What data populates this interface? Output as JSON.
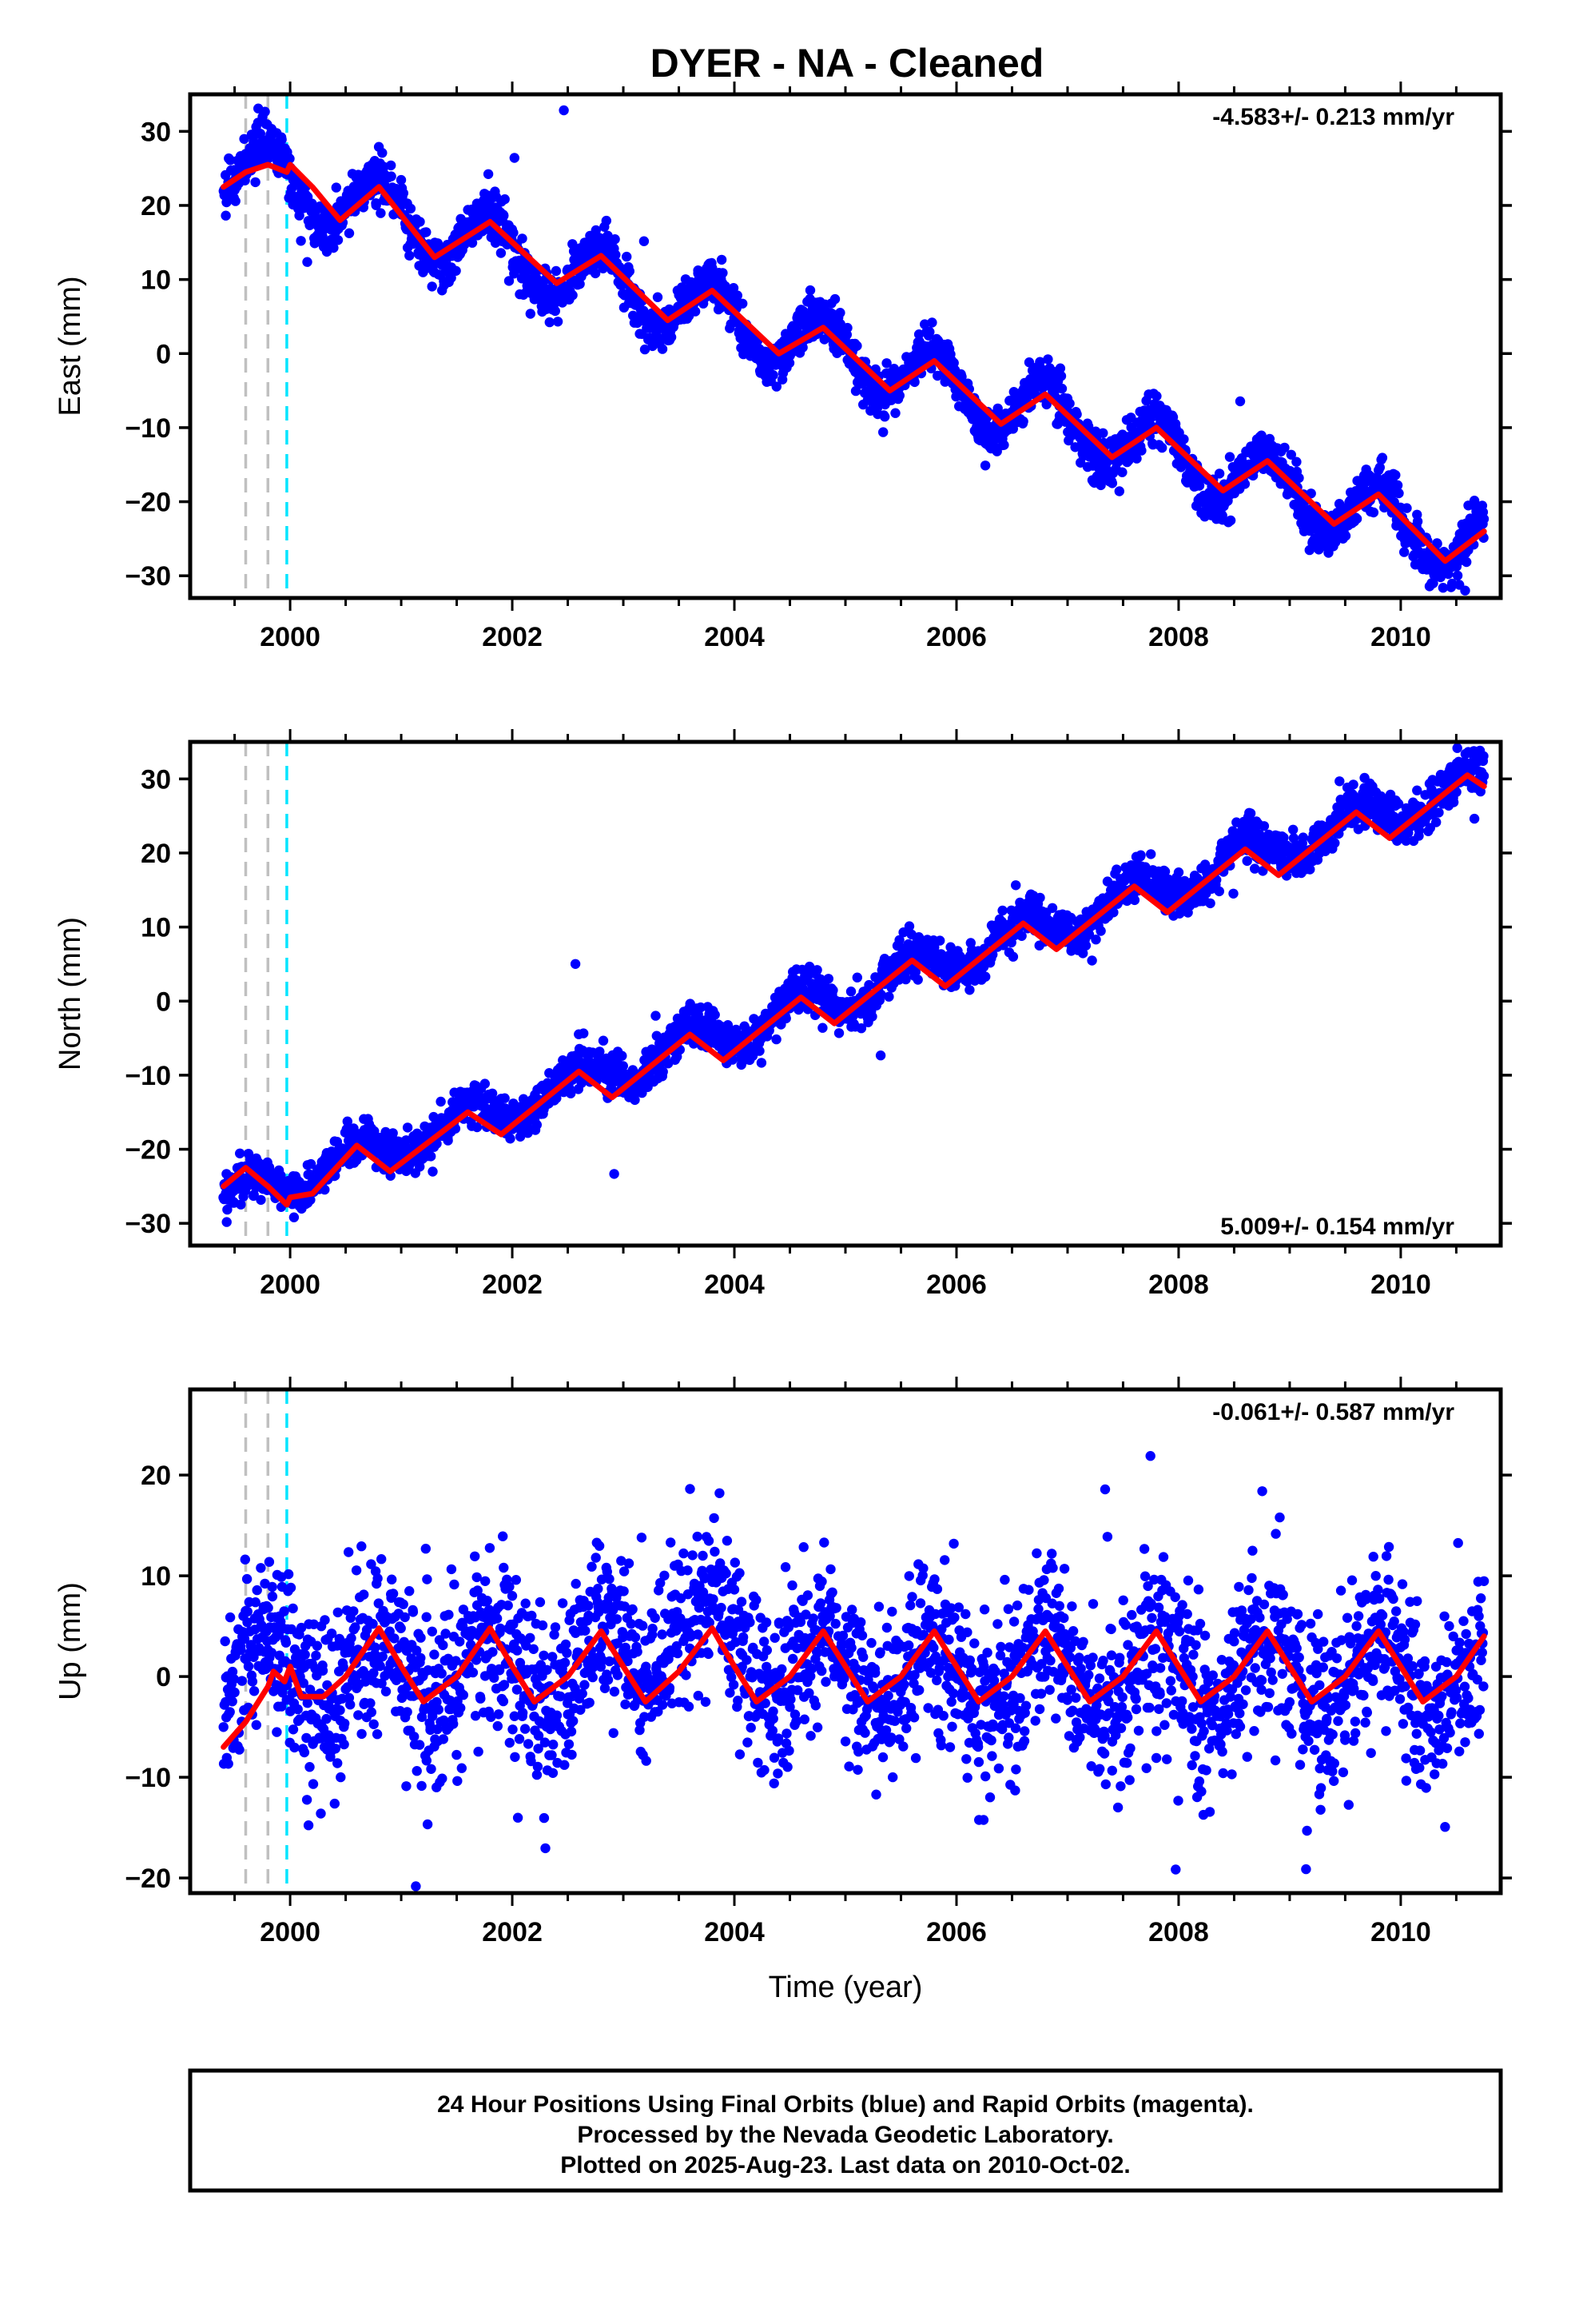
{
  "chart_data": {
    "title": "DYER  - NA - Cleaned",
    "type": "scatter",
    "x_axis": {
      "label": "Time (year)",
      "range": [
        1999.1,
        2010.9
      ],
      "tick_labels": [
        "2000",
        "2002",
        "2004",
        "2006",
        "2008",
        "2010"
      ],
      "tick_values": [
        2000,
        2002,
        2004,
        2006,
        2008,
        2010
      ]
    },
    "data_span": [
      1999.4,
      2010.75
    ],
    "event_lines": [
      {
        "x": 1999.6,
        "color": "#c0c0c0"
      },
      {
        "x": 1999.8,
        "color": "#c0c0c0"
      },
      {
        "x": 1999.97,
        "color": "#00e5ff"
      }
    ],
    "colors": {
      "data": "#0000ff",
      "model": "#ff0000",
      "frame": "#000000"
    },
    "panels": [
      {
        "component": "east",
        "ylabel": "East (mm)",
        "ylim": [
          -33,
          35
        ],
        "yticks": [
          30,
          20,
          10,
          0,
          -10,
          -20,
          -30
        ],
        "rate_text": "-4.583+/- 0.213 mm/yr",
        "rate_position": "top-right",
        "trend": {
          "start": 25.5,
          "rate": -4.583
        },
        "annual_amplitude": 4.4,
        "annual_phase_peak": 0.8,
        "scatter": 1.6,
        "model_points": [
          [
            1999.4,
            22.5
          ],
          [
            1999.6,
            24.5
          ],
          [
            1999.8,
            25.5
          ],
          [
            1999.97,
            24.5
          ],
          [
            2000.0,
            25.5
          ],
          [
            2000.2,
            22.5
          ],
          [
            2000.45,
            18.0
          ],
          [
            2000.8,
            22.5
          ],
          [
            2001.3,
            13.0
          ],
          [
            2001.8,
            17.8
          ],
          [
            2002.4,
            9.5
          ],
          [
            2002.8,
            13.2
          ],
          [
            2003.4,
            4.5
          ],
          [
            2003.8,
            8.5
          ],
          [
            2004.4,
            0.0
          ],
          [
            2004.8,
            3.5
          ],
          [
            2005.4,
            -5.0
          ],
          [
            2005.8,
            -1.0
          ],
          [
            2006.4,
            -9.5
          ],
          [
            2006.8,
            -5.5
          ],
          [
            2007.4,
            -14.0
          ],
          [
            2007.8,
            -10.0
          ],
          [
            2008.4,
            -18.5
          ],
          [
            2008.8,
            -14.5
          ],
          [
            2009.4,
            -23.0
          ],
          [
            2009.8,
            -19.0
          ],
          [
            2010.4,
            -28.0
          ],
          [
            2010.75,
            -24.0
          ]
        ]
      },
      {
        "component": "north",
        "ylabel": "North (mm)",
        "ylim": [
          -33,
          35
        ],
        "yticks": [
          30,
          20,
          10,
          0,
          -10,
          -20,
          -30
        ],
        "rate_text": "5.009+/- 0.154 mm/yr",
        "rate_position": "bottom-right",
        "trend": {
          "start": -27.0,
          "rate": 5.009
        },
        "annual_amplitude": 2.4,
        "annual_phase_peak": 0.6,
        "scatter": 1.4,
        "model_points": [
          [
            1999.4,
            -25.0
          ],
          [
            1999.6,
            -22.5
          ],
          [
            1999.8,
            -25.0
          ],
          [
            1999.97,
            -27.5
          ],
          [
            2000.0,
            -26.5
          ],
          [
            2000.2,
            -26.0
          ],
          [
            2000.6,
            -19.5
          ],
          [
            2000.9,
            -23.0
          ],
          [
            2001.6,
            -15.0
          ],
          [
            2001.9,
            -18.0
          ],
          [
            2002.6,
            -9.5
          ],
          [
            2002.9,
            -13.0
          ],
          [
            2003.6,
            -4.5
          ],
          [
            2003.9,
            -8.0
          ],
          [
            2004.6,
            0.5
          ],
          [
            2004.9,
            -3.0
          ],
          [
            2005.6,
            5.5
          ],
          [
            2005.9,
            2.0
          ],
          [
            2006.6,
            10.5
          ],
          [
            2006.9,
            7.0
          ],
          [
            2007.6,
            15.5
          ],
          [
            2007.9,
            12.0
          ],
          [
            2008.6,
            20.5
          ],
          [
            2008.9,
            17.0
          ],
          [
            2009.6,
            25.5
          ],
          [
            2009.9,
            22.0
          ],
          [
            2010.6,
            30.5
          ],
          [
            2010.75,
            29.0
          ]
        ]
      },
      {
        "component": "up",
        "ylabel": "Up (mm)",
        "ylim": [
          -21.5,
          28.5
        ],
        "yticks": [
          20,
          10,
          0,
          -10,
          -20
        ],
        "rate_text": "-0.061+/- 0.587 mm/yr",
        "rate_position": "top-right",
        "trend": {
          "start": 0.5,
          "rate": -0.061
        },
        "annual_amplitude": 3.6,
        "annual_phase_peak": 0.8,
        "scatter": 4.2,
        "model_points": [
          [
            1999.4,
            -7.0
          ],
          [
            1999.6,
            -4.5
          ],
          [
            1999.8,
            -1.0
          ],
          [
            1999.85,
            0.5
          ],
          [
            1999.95,
            -0.5
          ],
          [
            2000.0,
            1.0
          ],
          [
            2000.1,
            -2.0
          ],
          [
            2000.3,
            -2.0
          ],
          [
            2000.5,
            0.0
          ],
          [
            2000.8,
            4.8
          ],
          [
            2001.0,
            1.0
          ],
          [
            2001.2,
            -2.5
          ],
          [
            2001.5,
            0.0
          ],
          [
            2001.8,
            4.8
          ],
          [
            2002.0,
            1.0
          ],
          [
            2002.2,
            -2.5
          ],
          [
            2002.5,
            0.0
          ],
          [
            2002.8,
            4.5
          ],
          [
            2003.0,
            1.0
          ],
          [
            2003.2,
            -2.5
          ],
          [
            2003.5,
            0.5
          ],
          [
            2003.8,
            4.8
          ],
          [
            2004.0,
            1.0
          ],
          [
            2004.2,
            -2.5
          ],
          [
            2004.5,
            0.0
          ],
          [
            2004.8,
            4.5
          ],
          [
            2005.0,
            1.0
          ],
          [
            2005.2,
            -2.5
          ],
          [
            2005.5,
            0.0
          ],
          [
            2005.8,
            4.5
          ],
          [
            2006.0,
            1.0
          ],
          [
            2006.2,
            -2.5
          ],
          [
            2006.5,
            0.0
          ],
          [
            2006.8,
            4.5
          ],
          [
            2007.0,
            1.0
          ],
          [
            2007.2,
            -2.5
          ],
          [
            2007.5,
            0.0
          ],
          [
            2007.8,
            4.5
          ],
          [
            2008.0,
            1.0
          ],
          [
            2008.2,
            -2.5
          ],
          [
            2008.5,
            0.0
          ],
          [
            2008.8,
            4.5
          ],
          [
            2009.0,
            1.0
          ],
          [
            2009.2,
            -2.5
          ],
          [
            2009.5,
            0.0
          ],
          [
            2009.8,
            4.5
          ],
          [
            2010.0,
            1.0
          ],
          [
            2010.2,
            -2.5
          ],
          [
            2010.5,
            0.0
          ],
          [
            2010.75,
            4.0
          ]
        ]
      }
    ]
  },
  "footer": {
    "lines": [
      "24 Hour Positions Using Final Orbits (blue) and Rapid Orbits (magenta).",
      "Processed by the Nevada Geodetic Laboratory.",
      "Plotted on 2025-Aug-23. Last data on 2010-Oct-02."
    ]
  }
}
